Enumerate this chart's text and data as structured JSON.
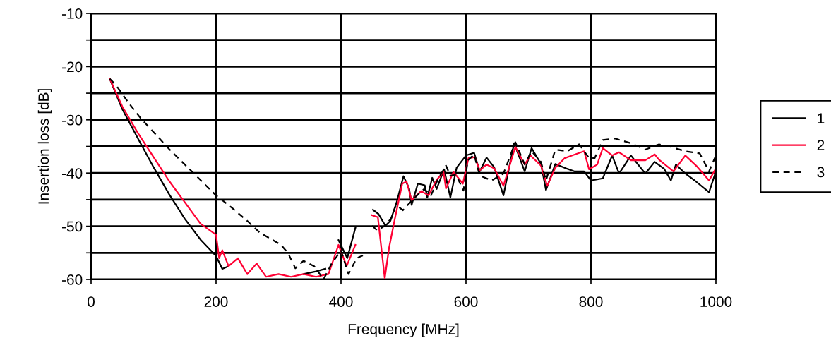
{
  "chart_data": {
    "type": "line",
    "xlabel": "Frequency [MHz]",
    "ylabel": "Insertion loss [dB]",
    "xlim": [
      0,
      1000
    ],
    "xticks": [
      0,
      200,
      400,
      600,
      800,
      1000
    ],
    "ylim": [
      -60,
      -10
    ],
    "yticks": [
      -60,
      {
        "value": -55,
        "label": null
      },
      -50,
      {
        "value": -45,
        "label": null
      },
      -40,
      {
        "value": -35,
        "label": null
      },
      -30,
      {
        "value": -25,
        "label": null
      },
      -20,
      {
        "value": -15,
        "label": null
      },
      -10
    ],
    "grid": true,
    "legend": "right",
    "marker": "none",
    "series": [
      {
        "name": "1",
        "color": "#000000",
        "line_style": "solid",
        "x": [
          30,
          50,
          75,
          100,
          125,
          150,
          175,
          200,
          210,
          220,
          230,
          340,
          360,
          375,
          385,
          396,
          410,
          423,
          440,
          451,
          460,
          471,
          479,
          489,
          500,
          509,
          513,
          523,
          534,
          538,
          546,
          553,
          565,
          575,
          585,
          600,
          613,
          622,
          633,
          645,
          660,
          677,
          694,
          705,
          720,
          728,
          743,
          762,
          774,
          789,
          800,
          819,
          834,
          845,
          864,
          887,
          902,
          917,
          928,
          936,
          951,
          966,
          989,
          1000
        ],
        "values": [
          -22.3,
          -28,
          -33.5,
          -38.9,
          -44,
          -48.6,
          -52.5,
          -55.6,
          -58,
          -57.5,
          null,
          -59,
          -58.5,
          -58,
          null,
          -52.6,
          -56,
          -50.3,
          null,
          -46.9,
          -47.7,
          -49.9,
          -49,
          -45.5,
          -40.6,
          -42.9,
          -46,
          -42,
          -42.3,
          -44.6,
          -40.9,
          -43,
          -39.3,
          -44.6,
          -39,
          -36.7,
          -36.2,
          -39.7,
          -37.1,
          -38.9,
          -44.2,
          -34.4,
          -39.7,
          -35.3,
          -38.3,
          -43.2,
          -38.3,
          -39.2,
          -39.7,
          -39.7,
          -41.4,
          -41,
          -36.7,
          -40.1,
          -36.7,
          -40.1,
          -37.9,
          -39.2,
          -41.4,
          -38.4,
          -40.1,
          -41.4,
          -43.6,
          -39.7
        ]
      },
      {
        "name": "2",
        "color": "#ff0033",
        "line_style": "solid",
        "x": [
          30,
          50,
          75,
          100,
          125,
          150,
          175,
          200,
          205,
          210,
          220,
          235,
          250,
          265,
          280,
          300,
          320,
          340,
          360,
          380,
          396,
          409,
          423,
          438,
          449,
          459,
          470,
          477,
          486,
          498,
          505,
          513,
          528,
          540,
          553,
          564,
          568,
          580,
          595,
          604,
          614,
          622,
          633,
          645,
          660,
          679,
          694,
          703,
          720,
          730,
          743,
          758,
          770,
          789,
          797,
          810,
          819,
          834,
          845,
          864,
          887,
          902,
          909,
          932,
          951,
          970,
          989,
          1000
        ],
        "values": [
          -22.3,
          -27.5,
          -32.5,
          -37,
          -41.5,
          -45.5,
          -49.5,
          -51.6,
          -56,
          -54.5,
          -57.5,
          -56,
          -59,
          -57,
          -59.5,
          -59,
          -59.5,
          -59,
          -59.5,
          -59,
          -53.5,
          -57.5,
          -53.5,
          null,
          -47.9,
          -48.3,
          -59.8,
          -54,
          -48.7,
          -42,
          -41.6,
          -45.1,
          -43.4,
          -44.2,
          -41.3,
          -39.8,
          -42.9,
          -39.8,
          -42,
          -37.2,
          -37,
          -39.5,
          -38.4,
          -39.1,
          -42.4,
          -35.1,
          -38.4,
          -36.7,
          -38.6,
          -42.4,
          -39,
          -37.2,
          -36.7,
          -35.9,
          -39.3,
          -38.4,
          -35.3,
          -36.7,
          -36.1,
          -37.6,
          -37.6,
          -36.5,
          -37.5,
          -39.7,
          -36.7,
          -38.8,
          -41.4,
          -39.1
        ]
      },
      {
        "name": "3",
        "color": "#000000",
        "line_style": "dashed",
        "x": [
          30,
          40,
          60,
          80,
          100,
          125,
          150,
          175,
          200,
          225,
          250,
          270,
          285,
          304,
          315,
          327,
          340,
          357,
          372,
          385,
          400,
          412,
          425,
          435,
          443,
          450,
          458,
          469,
          480,
          488,
          499,
          510,
          520,
          533,
          544,
          555,
          568,
          575,
          584,
          596,
          603,
          613,
          622,
          641,
          660,
          679,
          694,
          705,
          720,
          728,
          743,
          762,
          781,
          797,
          806,
          819,
          838,
          864,
          887,
          909,
          928,
          951,
          974,
          989,
          1000
        ],
        "values": [
          -22.3,
          -23.5,
          -26.8,
          -29.8,
          -32.3,
          -35.5,
          -38.4,
          -41.3,
          -44.2,
          -46.5,
          -49,
          -51.2,
          -52.2,
          -53.5,
          -55,
          -57.9,
          -56.5,
          -57.5,
          -60,
          -57,
          -54.6,
          -59,
          -56,
          -55.5,
          null,
          -49.9,
          -50.8,
          -50,
          -48.6,
          -46,
          -47,
          -45.6,
          -44.4,
          -43,
          -44.2,
          -41.2,
          -38.6,
          -40.5,
          -40.3,
          -43.3,
          -37.6,
          -36.5,
          -40.5,
          -41.4,
          -40.1,
          -34.2,
          -38.4,
          -35.9,
          -37.9,
          -41.4,
          -35.6,
          -35.9,
          -34.6,
          -37.2,
          -37.2,
          -33.8,
          -33.5,
          -34.4,
          -35.6,
          -34.6,
          -35.1,
          -35.9,
          -36.3,
          -39.7,
          -36.7
        ]
      }
    ]
  }
}
